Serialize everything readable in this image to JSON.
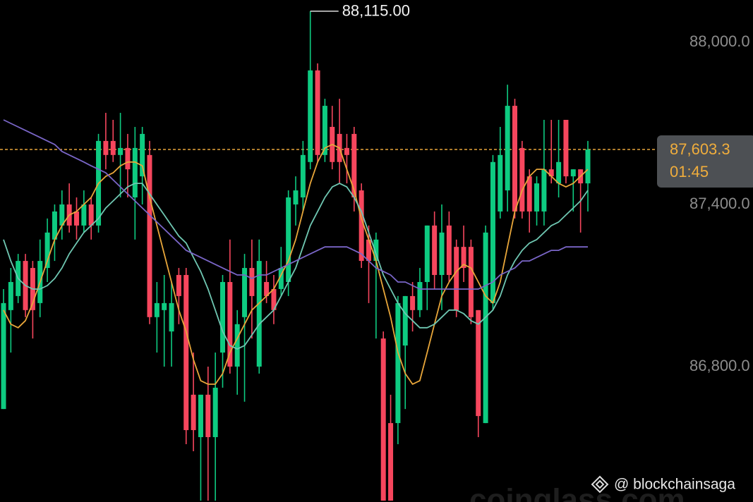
{
  "chart_data": {
    "type": "candlestick",
    "open": [
      86643,
      87009,
      87061,
      87191,
      87165,
      87035,
      87165,
      87270,
      87322,
      87400,
      87374,
      87322,
      87400,
      87322,
      87635,
      87635,
      87583,
      87609,
      87426,
      87504,
      87583,
      86983,
      87009,
      86930,
      87139,
      87139,
      86696,
      86539,
      86696,
      86539,
      86852,
      87113,
      86800,
      86983,
      87165,
      86800,
      87113,
      87087,
      87087,
      87113,
      87400,
      87426,
      87557,
      87896,
      87583,
      87687,
      87661,
      87609,
      87661,
      87452,
      87270,
      87191,
      86904,
      86591,
      86591,
      86878,
      87061,
      87009,
      87113,
      87322,
      87139,
      87322,
      87243,
      87243,
      87243,
      87009,
      86591,
      87035,
      87374,
      87452,
      87765,
      87609,
      87504,
      87374,
      87374,
      87530,
      87478,
      87713,
      87504,
      87530,
      87478
    ],
    "high": [
      87087,
      87165,
      87217,
      87217,
      87191,
      87270,
      87348,
      87400,
      87452,
      87478,
      87426,
      87452,
      87426,
      87661,
      87739,
      87713,
      87739,
      87661,
      87687,
      87687,
      87635,
      87113,
      87139,
      87113,
      87165,
      87165,
      86852,
      86696,
      86800,
      86852,
      87139,
      87270,
      87009,
      87217,
      87270,
      87270,
      87191,
      87139,
      87243,
      87452,
      87504,
      87635,
      88115,
      87922,
      87791,
      87765,
      87791,
      87661,
      87687,
      87478,
      87322,
      87296,
      86930,
      86696,
      87061,
      87061,
      87113,
      87165,
      87322,
      87374,
      87400,
      87374,
      87270,
      87322,
      87270,
      87009,
      87322,
      87583,
      87687,
      87843,
      87791,
      87635,
      87530,
      87504,
      87713,
      87713,
      87713,
      87713,
      87530,
      87530,
      87635
    ],
    "low": [
      86643,
      86852,
      87035,
      86983,
      86904,
      86983,
      87113,
      87191,
      87270,
      87296,
      87270,
      87296,
      87270,
      87296,
      87530,
      87557,
      87426,
      87426,
      87270,
      87400,
      86957,
      86852,
      86800,
      86800,
      86957,
      86513,
      86487,
      86304,
      86304,
      86304,
      86722,
      86774,
      86696,
      86670,
      86904,
      86774,
      87035,
      86957,
      87061,
      87061,
      87322,
      87374,
      87530,
      87557,
      87557,
      87530,
      87478,
      87478,
      87374,
      87165,
      87035,
      86904,
      86304,
      86304,
      86513,
      86643,
      86930,
      86983,
      87009,
      87087,
      87009,
      87113,
      86983,
      87113,
      86957,
      86539,
      86591,
      87009,
      87348,
      87374,
      87348,
      87348,
      87296,
      87322,
      87322,
      87478,
      87426,
      87478,
      87374,
      87296,
      87374
    ],
    "close": [
      87035,
      87113,
      87191,
      87009,
      87009,
      87191,
      87296,
      87374,
      87400,
      87322,
      87322,
      87400,
      87322,
      87635,
      87583,
      87583,
      87609,
      87530,
      87609,
      87661,
      86983,
      87035,
      87035,
      87035,
      87061,
      86565,
      86565,
      86696,
      86539,
      86722,
      87113,
      86800,
      86957,
      87165,
      87061,
      87191,
      87061,
      87009,
      87165,
      87426,
      87452,
      87583,
      87896,
      87583,
      87765,
      87557,
      87557,
      87583,
      87426,
      87191,
      87191,
      87270,
      86304,
      86304,
      87035,
      87061,
      87009,
      87113,
      87322,
      87139,
      87296,
      87139,
      87009,
      87165,
      86983,
      86617,
      87296,
      87557,
      87583,
      87765,
      87374,
      87374,
      87374,
      87478,
      87530,
      87504,
      87557,
      87504,
      87530,
      87478,
      87603.3
    ],
    "up_color": "#0ecb81",
    "down_color": "#f6465d",
    "series": [
      {
        "color": "#e8a63a",
        "values": [
          87009,
          86957,
          86944,
          86970,
          87035,
          87113,
          87191,
          87270,
          87322,
          87361,
          87374,
          87400,
          87426,
          87478,
          87504,
          87517,
          87543,
          87557,
          87557,
          87543,
          87426,
          87322,
          87217,
          87113,
          87009,
          86930,
          86826,
          86748,
          86735,
          86735,
          86774,
          86852,
          86904,
          86957,
          87009,
          87035,
          87061,
          87087,
          87139,
          87191,
          87270,
          87374,
          87478,
          87557,
          87609,
          87622,
          87609,
          87530,
          87452,
          87348,
          87270,
          87191,
          87087,
          86983,
          86852,
          86774,
          86735,
          86748,
          86852,
          86957,
          87061,
          87113,
          87152,
          87178,
          87165,
          87113,
          87061,
          87035,
          87113,
          87243,
          87374,
          87452,
          87504,
          87530,
          87530,
          87504,
          87478,
          87465,
          87478,
          87504,
          87530
        ]
      },
      {
        "color": "#6fc7b2",
        "values": [
          87270,
          87191,
          87126,
          87100,
          87087,
          87087,
          87100,
          87126,
          87165,
          87217,
          87257,
          87296,
          87322,
          87348,
          87387,
          87413,
          87439,
          87465,
          87478,
          87478,
          87439,
          87400,
          87361,
          87322,
          87283,
          87257,
          87204,
          87152,
          87087,
          87009,
          86930,
          86878,
          86865,
          86878,
          86917,
          86957,
          86983,
          87009,
          87061,
          87113,
          87165,
          87243,
          87322,
          87374,
          87426,
          87465,
          87478,
          87465,
          87426,
          87374,
          87296,
          87217,
          87139,
          87087,
          87035,
          86996,
          86970,
          86944,
          86944,
          86957,
          86983,
          87009,
          87009,
          86996,
          86970,
          86957,
          86983,
          87009,
          87061,
          87139,
          87191,
          87230,
          87257,
          87270,
          87296,
          87322,
          87335,
          87361,
          87387,
          87413,
          87452
        ]
      },
      {
        "color": "#7a66c8",
        "values": [
          87713,
          87700,
          87687,
          87674,
          87661,
          87648,
          87635,
          87622,
          87596,
          87583,
          87570,
          87557,
          87543,
          87530,
          87517,
          87491,
          87465,
          87439,
          87413,
          87387,
          87361,
          87335,
          87309,
          87283,
          87257,
          87230,
          87217,
          87204,
          87191,
          87178,
          87165,
          87152,
          87139,
          87139,
          87126,
          87139,
          87139,
          87152,
          87165,
          87178,
          87191,
          87204,
          87217,
          87230,
          87243,
          87243,
          87243,
          87243,
          87230,
          87217,
          87191,
          87165,
          87152,
          87139,
          87113,
          87113,
          87100,
          87087,
          87087,
          87087,
          87087,
          87087,
          87087,
          87087,
          87087,
          87087,
          87100,
          87113,
          87139,
          87152,
          87165,
          87191,
          87191,
          87204,
          87217,
          87230,
          87230,
          87243,
          87243,
          87243,
          87243
        ]
      }
    ],
    "ylim": [
      86299,
      88156.5
    ],
    "yticks": [
      {
        "value": 86800,
        "label": "86,800.0"
      },
      {
        "value": 87400,
        "label": "87,400.0"
      },
      {
        "value": 88000,
        "label": "88,000.0"
      }
    ],
    "grid": false,
    "annotations": [
      {
        "value": 88115,
        "label": "88,115.00"
      }
    ],
    "last_price": {
      "value": 87603.3,
      "label": "87,603.3"
    },
    "countdown": "01:45"
  },
  "watermarks": [
    "@ blockchainsaga",
    "coinglass.com"
  ]
}
